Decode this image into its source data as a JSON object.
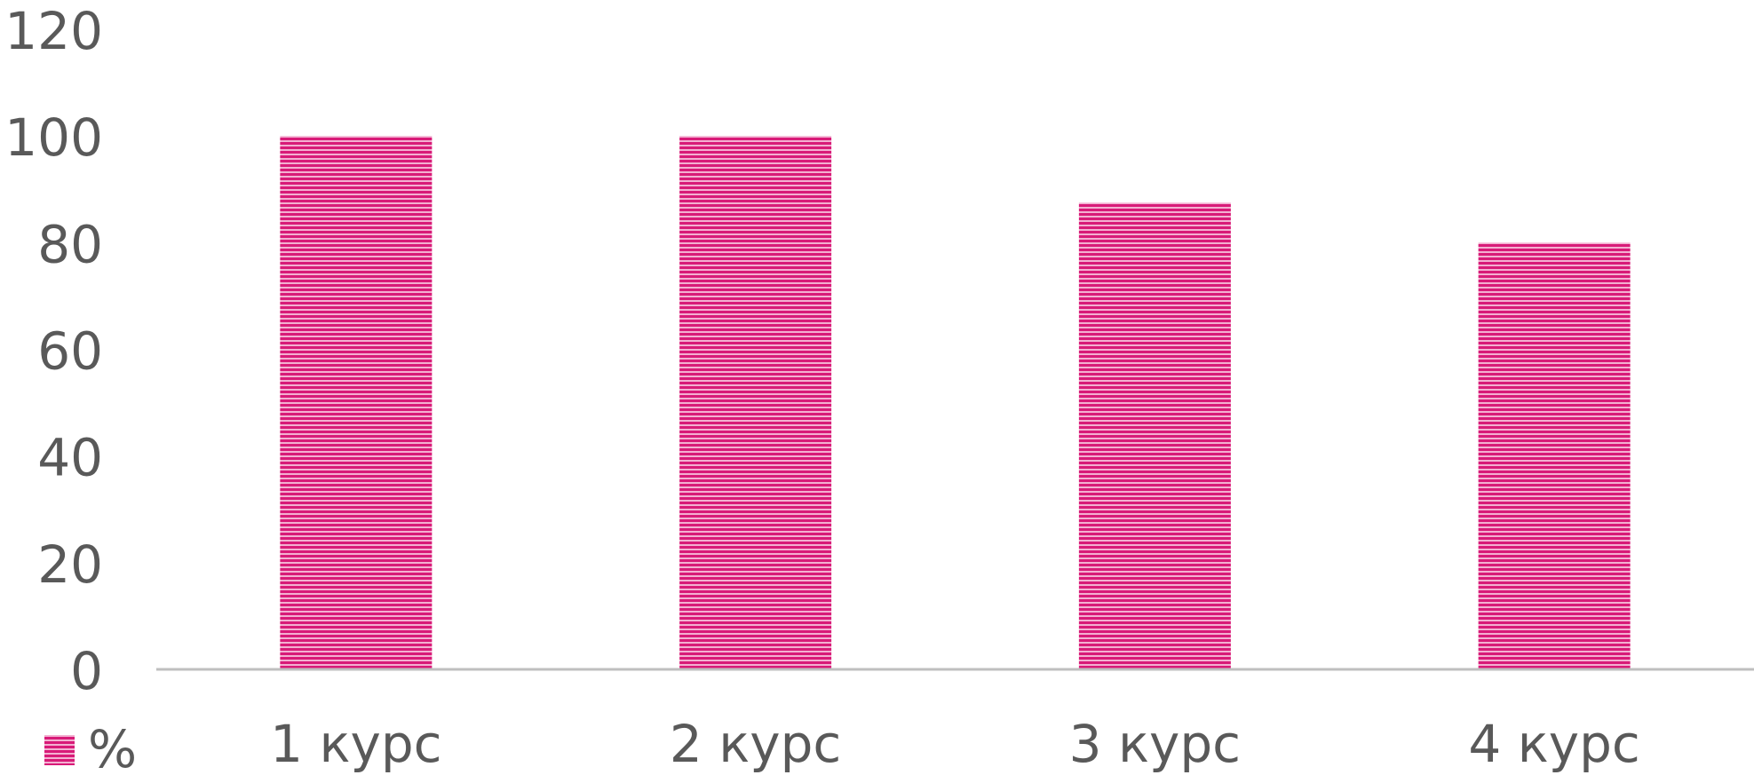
{
  "chart_data": {
    "type": "bar",
    "categories": [
      "1 курс",
      "2 курс",
      "3 курс",
      "4 курс"
    ],
    "series": [
      {
        "name": "%",
        "values": [
          100,
          100,
          87.5,
          80
        ]
      }
    ],
    "ylim": [
      0,
      120
    ],
    "yticks": [
      "0",
      "20",
      "40",
      "60",
      "80",
      "100",
      "120"
    ],
    "title": "",
    "xlabel": "",
    "ylabel": "",
    "grid": false,
    "legend_position": "bottom-left"
  },
  "colors": {
    "bar": "#d81b78",
    "bar_stripe": "#f3b0d1",
    "axis": "#bfbfbf",
    "text": "#595959"
  }
}
